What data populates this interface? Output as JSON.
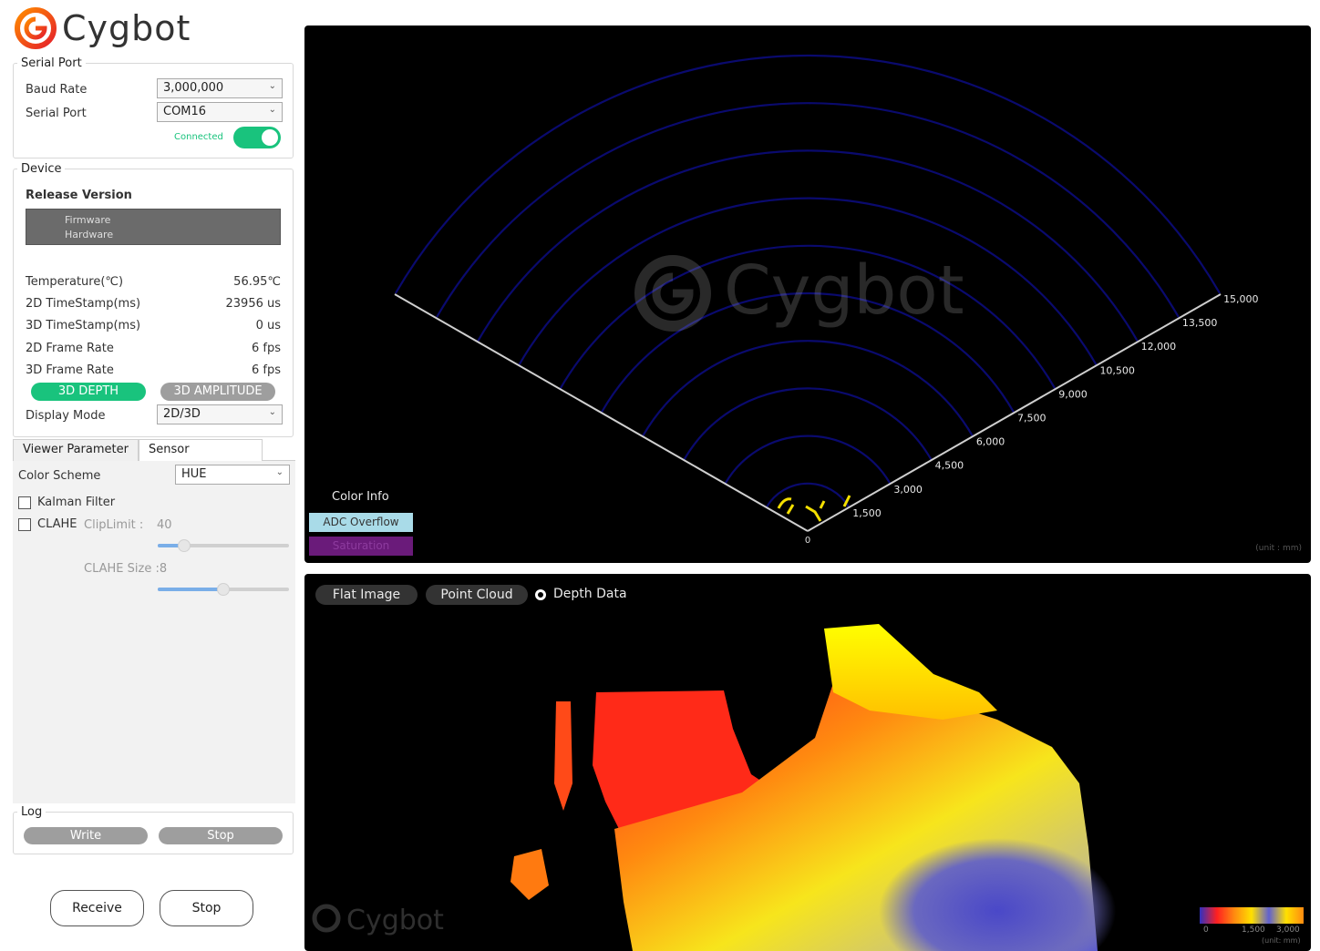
{
  "app": {
    "logo_text": "Cygbot"
  },
  "serial_port": {
    "legend": "Serial Port",
    "baud_rate_label": "Baud Rate",
    "baud_rate_value": "3,000,000",
    "serial_port_label": "Serial Port",
    "serial_port_value": "COM16",
    "status_text": "Connected",
    "connected": true
  },
  "device": {
    "legend": "Device",
    "release_version_label": "Release Version",
    "firmware_label": "Firmware",
    "hardware_label": "Hardware",
    "stats": [
      {
        "label": "Temperature(℃)",
        "value": "56.95℃"
      },
      {
        "label": "2D TimeStamp(ms)",
        "value": "23956 us"
      },
      {
        "label": "3D TimeStamp(ms)",
        "value": "0 us"
      },
      {
        "label": "2D Frame Rate",
        "value": "6 fps"
      },
      {
        "label": "3D Frame Rate",
        "value": "6 fps"
      }
    ],
    "depth_button": "3D DEPTH",
    "amplitude_button": "3D AMPLITUDE",
    "display_mode_label": "Display Mode",
    "display_mode_value": "2D/3D"
  },
  "tabs": [
    {
      "label": "Viewer Parameter",
      "active": true
    },
    {
      "label": "Sensor Parameter",
      "active": false
    }
  ],
  "viewer_params": {
    "color_scheme_label": "Color Scheme",
    "color_scheme_value": "HUE",
    "kalman_label": "Kalman Filter",
    "kalman_checked": false,
    "clahe_label": "CLAHE",
    "clahe_checked": false,
    "cliplimit_label": "ClipLimit :",
    "cliplimit_value": "40",
    "cliplimit_fraction": 0.2,
    "clahe_size_label": "CLAHE Size :8",
    "clahe_size_fraction": 0.5
  },
  "log": {
    "legend": "Log",
    "write_button": "Write",
    "stop_button": "Stop"
  },
  "footer": {
    "receive_button": "Receive",
    "stop_button": "Stop"
  },
  "top_view": {
    "watermark": "Cygbot",
    "origin_label": "0",
    "range_labels": [
      "1,500",
      "3,000",
      "4,500",
      "6,000",
      "7,500",
      "9,000",
      "10,500",
      "12,000",
      "13,500",
      "15,000"
    ],
    "unit_label": "(unit : mm)",
    "color_info_title": "Color Info",
    "adc_overflow_label": "ADC Overflow",
    "saturation_label": "Saturation",
    "arc_color": "#0a0a6e",
    "adc_color": "#a9dbe8",
    "saturation_color": "#6a1b7a"
  },
  "bottom_view": {
    "flat_image_button": "Flat Image",
    "point_cloud_button": "Point Cloud",
    "depth_data_label": "Depth Data",
    "watermark": "Cygbot",
    "scale_labels": [
      "0",
      "1,500",
      "3,000"
    ],
    "scale_unit": "(unit: mm)"
  }
}
